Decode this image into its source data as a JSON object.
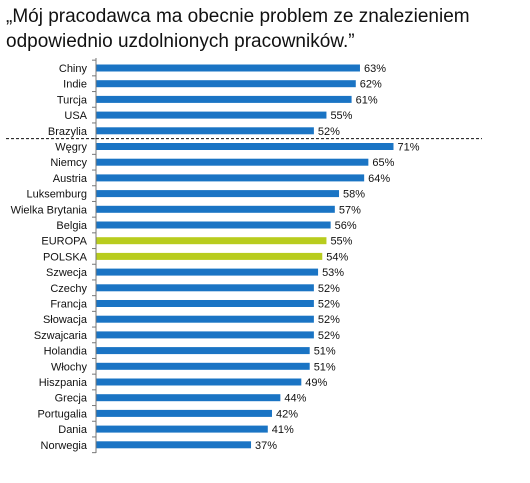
{
  "title_lines": [
    "„Mój pracodawca ma obecnie problem ze znalezieniem",
    "odpowiednio uzdolnionych pracowników.”"
  ],
  "colors": {
    "bar": "#1a74c4",
    "highlight": "#b8cc1e",
    "text": "#111111",
    "axis": "#777777",
    "separator": "#111111"
  },
  "chart_data": {
    "type": "bar",
    "orientation": "horizontal",
    "value_suffix": "%",
    "xlim": [
      0,
      100
    ],
    "grid": false,
    "legend": "none",
    "separator_after_index": 4,
    "highlighted": [
      "EUROPA",
      "POLSKA"
    ],
    "categories": [
      "Chiny",
      "Indie",
      "Turcja",
      "USA",
      "Brazylia",
      "Węgry",
      "Niemcy",
      "Austria",
      "Luksemburg",
      "Wielka Brytania",
      "Belgia",
      "EUROPA",
      "POLSKA",
      "Szwecja",
      "Czechy",
      "Francja",
      "Słowacja",
      "Szwajcaria",
      "Holandia",
      "Włochy",
      "Hiszpania",
      "Grecja",
      "Portugalia",
      "Dania",
      "Norwegia"
    ],
    "values": [
      63,
      62,
      61,
      55,
      52,
      71,
      65,
      64,
      58,
      57,
      56,
      55,
      54,
      53,
      52,
      52,
      52,
      52,
      51,
      51,
      49,
      44,
      42,
      41,
      37
    ],
    "labels": [
      "63%",
      "62%",
      "61%",
      "55%",
      "52%",
      "71%",
      "65%",
      "64%",
      "58%",
      "57%",
      "56%",
      "55%",
      "54%",
      "53%",
      "52%",
      "52%",
      "52%",
      "52%",
      "51%",
      "51%",
      "49%",
      "44%",
      "42%",
      "41%",
      "37%"
    ]
  }
}
